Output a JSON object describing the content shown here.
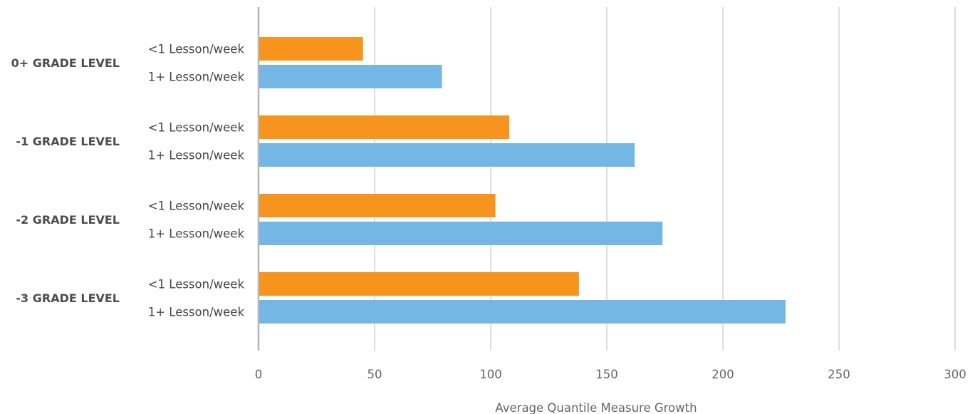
{
  "chart_data": {
    "type": "bar",
    "orientation": "horizontal",
    "xlabel": "Average Quantile Measure Growth",
    "xlim": [
      0,
      300
    ],
    "x_ticks": [
      0,
      50,
      100,
      150,
      200,
      250,
      300
    ],
    "grid": true,
    "groups": [
      {
        "label": "0+ GRADE LEVEL",
        "bars": [
          {
            "series": "<1 Lesson/week",
            "value": 45
          },
          {
            "series": "1+ Lesson/week",
            "value": 79
          }
        ]
      },
      {
        "label": "-1 GRADE LEVEL",
        "bars": [
          {
            "series": "<1 Lesson/week",
            "value": 108
          },
          {
            "series": "1+ Lesson/week",
            "value": 162
          }
        ]
      },
      {
        "label": "-2 GRADE LEVEL",
        "bars": [
          {
            "series": "<1 Lesson/week",
            "value": 102
          },
          {
            "series": "1+ Lesson/week",
            "value": 174
          }
        ]
      },
      {
        "label": "-3 GRADE LEVEL",
        "bars": [
          {
            "series": "<1 Lesson/week",
            "value": 138
          },
          {
            "series": "1+ Lesson/week",
            "value": 227
          }
        ]
      }
    ],
    "series_colors": {
      "<1 Lesson/week": "#f7941d",
      "1+ Lesson/week": "#74b6e4"
    }
  }
}
